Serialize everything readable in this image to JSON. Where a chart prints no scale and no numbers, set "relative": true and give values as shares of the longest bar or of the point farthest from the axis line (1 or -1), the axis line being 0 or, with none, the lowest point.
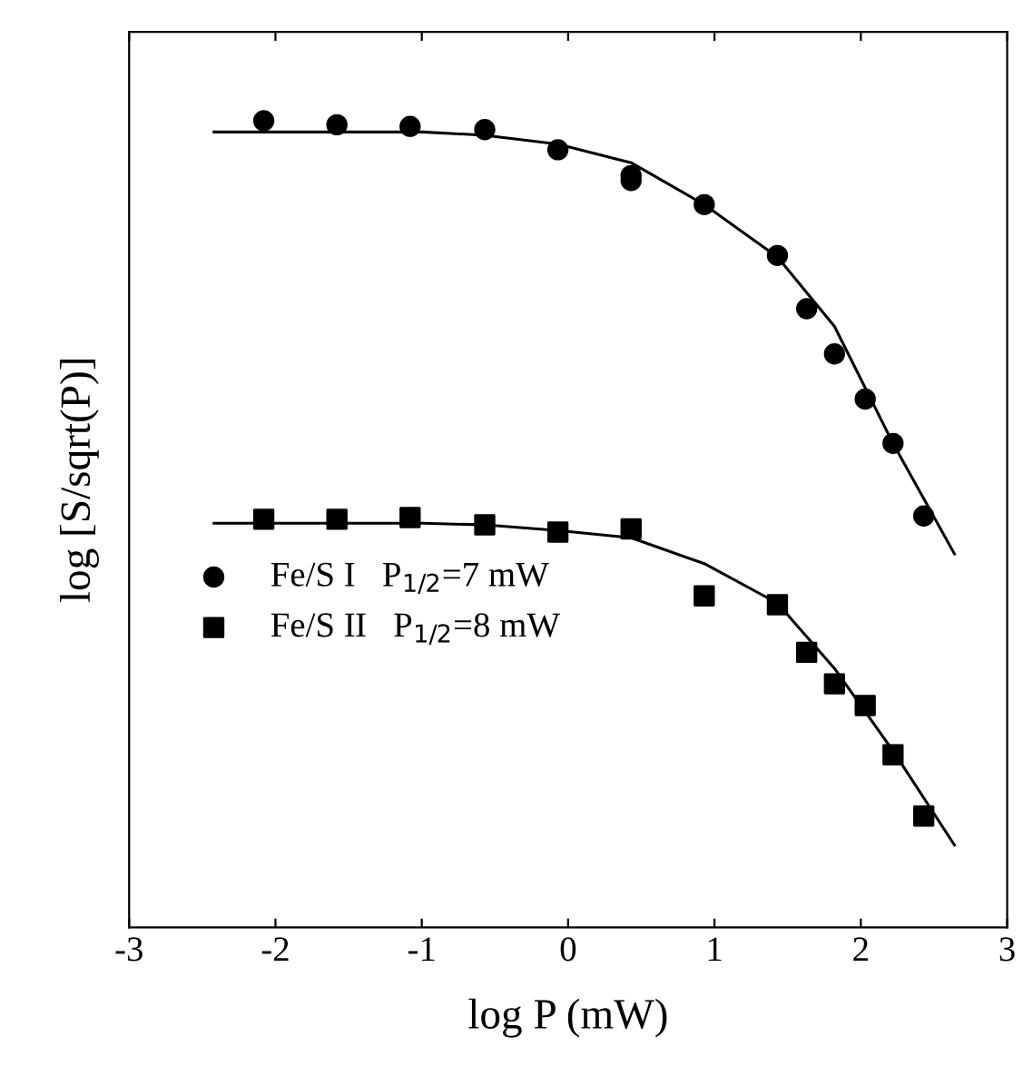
{
  "chart_data": {
    "type": "scatter",
    "relative": true,
    "xlabel": "log P (mW)",
    "ylabel": "log [S/sqrt(P)]",
    "xlim": [
      -3,
      3
    ],
    "xticks": [
      -3,
      -2,
      -1,
      0,
      1,
      2,
      3
    ],
    "tick_labels": "x",
    "grid": false,
    "legend": "bottom left",
    "series": [
      {
        "name": "Fe/S I   P$_{1/2}$=7 mW",
        "color": "#000000",
        "marker": "circle",
        "x": [
          -2.08,
          -1.58,
          -1.08,
          -0.57,
          -0.07,
          0.43,
          0.43,
          0.93,
          1.43,
          1.63,
          1.82,
          2.03,
          2.22,
          2.43
        ],
        "values": [
          1.0,
          0.995,
          0.993,
          0.989,
          0.964,
          0.932,
          0.926,
          0.896,
          0.833,
          0.767,
          0.711,
          0.655,
          0.6,
          0.51
        ]
      },
      {
        "name": "Fe/S II   P$_{1/2}$=8 mW",
        "color": "#000000",
        "marker": "square",
        "x": [
          -2.08,
          -1.58,
          -1.08,
          -0.57,
          -0.07,
          0.43,
          0.93,
          1.43,
          1.63,
          1.82,
          2.03,
          2.22,
          2.43
        ],
        "values": [
          0.506,
          0.506,
          0.508,
          0.499,
          0.49,
          0.494,
          0.411,
          0.4,
          0.341,
          0.302,
          0.275,
          0.214,
          0.138
        ]
      },
      {
        "type": "line",
        "color": "#000000",
        "marker": "none",
        "line_style": "solid",
        "x": [
          -2.42,
          -0.99,
          -0.57,
          -0.07,
          0.43,
          0.93,
          1.43,
          1.82,
          2.22,
          2.64
        ],
        "values": [
          0.986,
          0.986,
          0.982,
          0.971,
          0.948,
          0.896,
          0.831,
          0.745,
          0.6,
          0.463
        ]
      },
      {
        "type": "line",
        "color": "#000000",
        "marker": "none",
        "line_style": "solid",
        "x": [
          -2.42,
          -0.99,
          -0.57,
          -0.07,
          0.43,
          0.93,
          1.43,
          1.82,
          2.22,
          2.64
        ],
        "values": [
          0.501,
          0.501,
          0.499,
          0.492,
          0.483,
          0.451,
          0.402,
          0.321,
          0.219,
          0.102
        ]
      }
    ]
  }
}
